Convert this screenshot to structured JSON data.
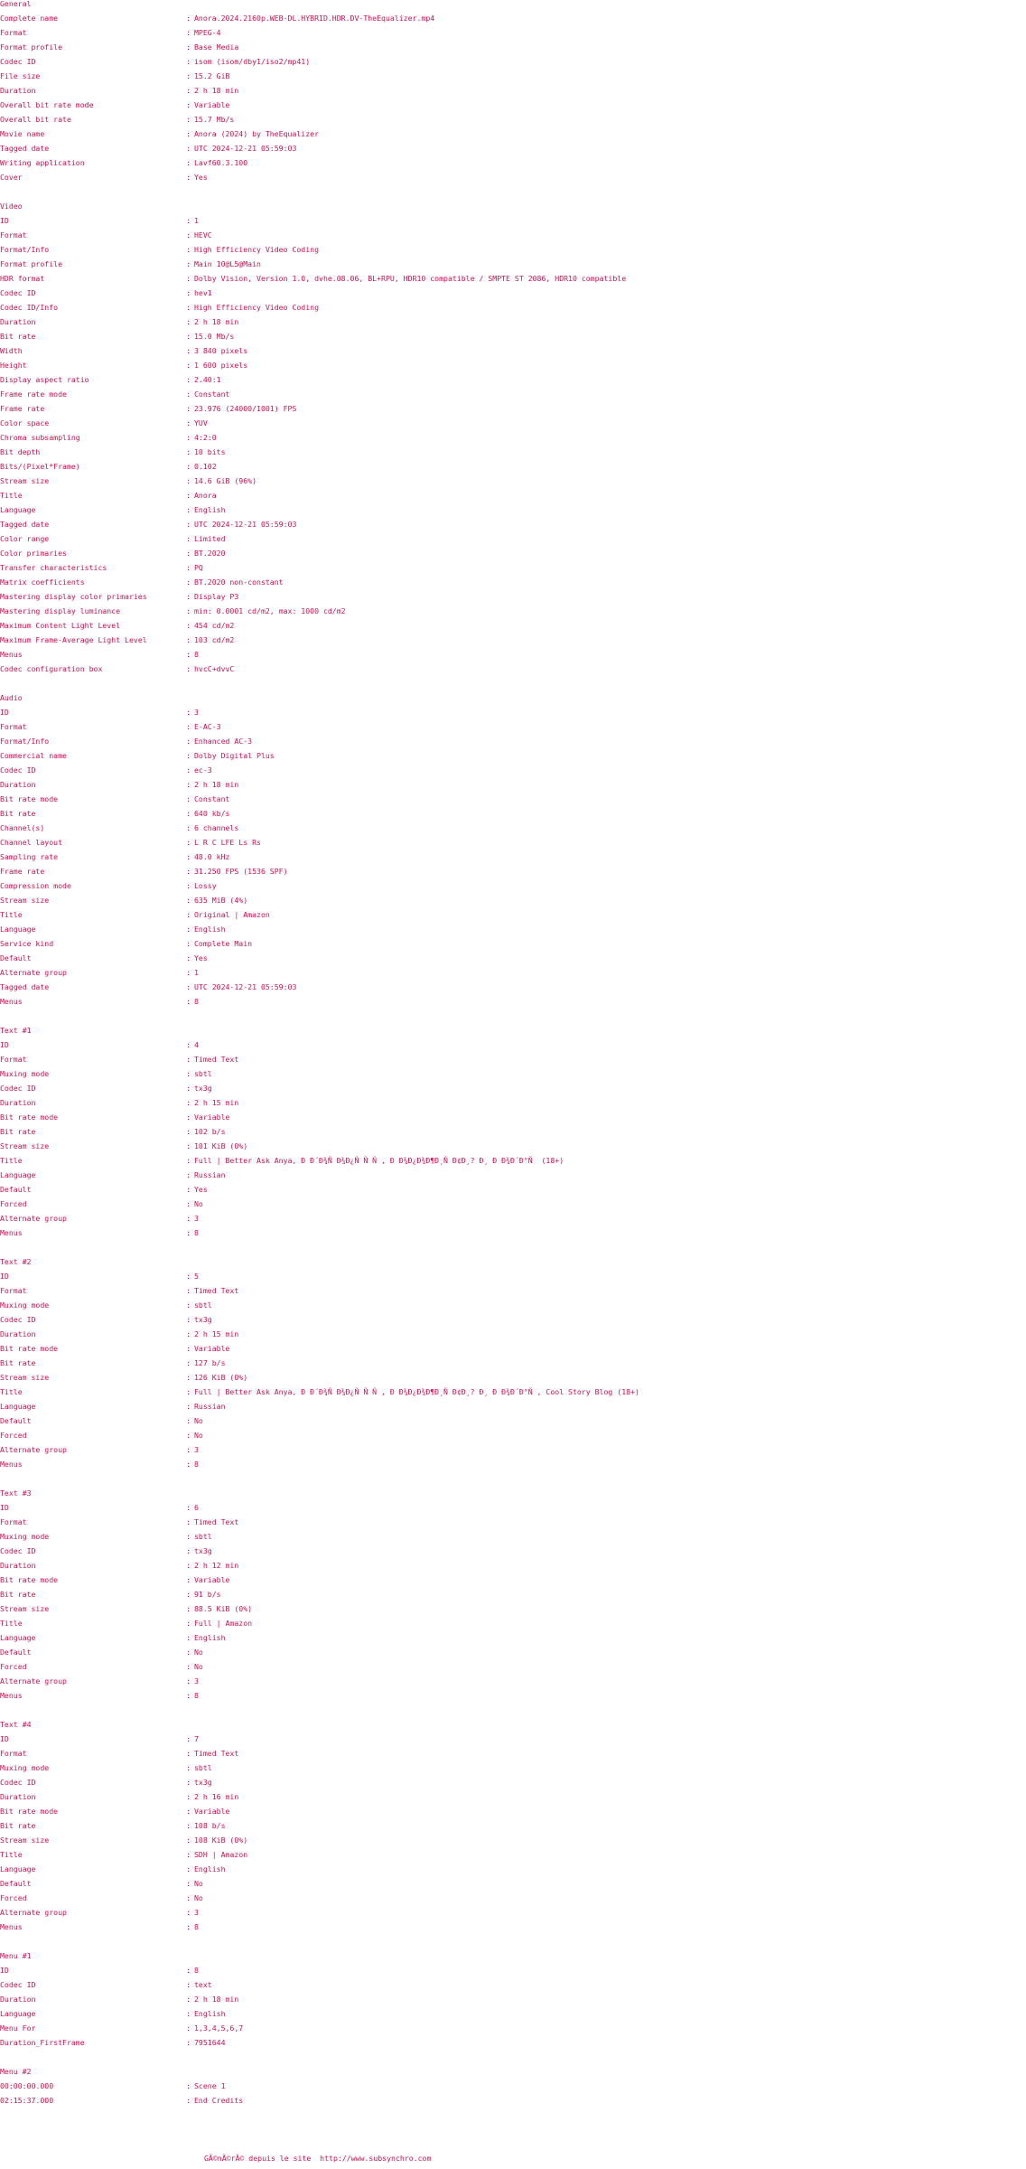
{
  "theme": {
    "text_color": "#cc1050",
    "background": "#ffffff"
  },
  "separator": ":",
  "sections": [
    {
      "title": "General",
      "rows": [
        [
          "Complete name",
          "Anora.2024.2160p.WEB-DL.HYBRID.HDR.DV-TheEqualizer.mp4"
        ],
        [
          "Format",
          "MPEG-4"
        ],
        [
          "Format profile",
          "Base Media"
        ],
        [
          "Codec ID",
          "isom (isom/dby1/iso2/mp41)"
        ],
        [
          "File size",
          "15.2 GiB"
        ],
        [
          "Duration",
          "2 h 18 min"
        ],
        [
          "Overall bit rate mode",
          "Variable"
        ],
        [
          "Overall bit rate",
          "15.7 Mb/s"
        ],
        [
          "Movie name",
          "Anora (2024) by TheEqualizer"
        ],
        [
          "Tagged date",
          "UTC 2024-12-21 05:59:03"
        ],
        [
          "Writing application",
          "Lavf60.3.100"
        ],
        [
          "Cover",
          "Yes"
        ]
      ]
    },
    {
      "title": "Video",
      "rows": [
        [
          "ID",
          "1"
        ],
        [
          "Format",
          "HEVC"
        ],
        [
          "Format/Info",
          "High Efficiency Video Coding"
        ],
        [
          "Format profile",
          "Main 10@L5@Main"
        ],
        [
          "HDR format",
          "Dolby Vision, Version 1.0, dvhe.08.06, BL+RPU, HDR10 compatible / SMPTE ST 2086, HDR10 compatible"
        ],
        [
          "Codec ID",
          "hev1"
        ],
        [
          "Codec ID/Info",
          "High Efficiency Video Coding"
        ],
        [
          "Duration",
          "2 h 18 min"
        ],
        [
          "Bit rate",
          "15.0 Mb/s"
        ],
        [
          "Width",
          "3 840 pixels"
        ],
        [
          "Height",
          "1 600 pixels"
        ],
        [
          "Display aspect ratio",
          "2.40:1"
        ],
        [
          "Frame rate mode",
          "Constant"
        ],
        [
          "Frame rate",
          "23.976 (24000/1001) FPS"
        ],
        [
          "Color space",
          "YUV"
        ],
        [
          "Chroma subsampling",
          "4:2:0"
        ],
        [
          "Bit depth",
          "10 bits"
        ],
        [
          "Bits/(Pixel*Frame)",
          "0.102"
        ],
        [
          "Stream size",
          "14.6 GiB (96%)"
        ],
        [
          "Title",
          "Anora"
        ],
        [
          "Language",
          "English"
        ],
        [
          "Tagged date",
          "UTC 2024-12-21 05:59:03"
        ],
        [
          "Color range",
          "Limited"
        ],
        [
          "Color primaries",
          "BT.2020"
        ],
        [
          "Transfer characteristics",
          "PQ"
        ],
        [
          "Matrix coefficients",
          "BT.2020 non-constant"
        ],
        [
          "Mastering display color primaries",
          "Display P3"
        ],
        [
          "Mastering display luminance",
          "min: 0.0001 cd/m2, max: 1000 cd/m2"
        ],
        [
          "Maximum Content Light Level",
          "454 cd/m2"
        ],
        [
          "Maximum Frame-Average Light Level",
          "103 cd/m2"
        ],
        [
          "Menus",
          "8"
        ],
        [
          "Codec configuration box",
          "hvcC+dvvC"
        ]
      ]
    },
    {
      "title": "Audio",
      "rows": [
        [
          "ID",
          "3"
        ],
        [
          "Format",
          "E-AC-3"
        ],
        [
          "Format/Info",
          "Enhanced AC-3"
        ],
        [
          "Commercial name",
          "Dolby Digital Plus"
        ],
        [
          "Codec ID",
          "ec-3"
        ],
        [
          "Duration",
          "2 h 18 min"
        ],
        [
          "Bit rate mode",
          "Constant"
        ],
        [
          "Bit rate",
          "640 kb/s"
        ],
        [
          "Channel(s)",
          "6 channels"
        ],
        [
          "Channel layout",
          "L R C LFE Ls Rs"
        ],
        [
          "Sampling rate",
          "48.0 kHz"
        ],
        [
          "Frame rate",
          "31.250 FPS (1536 SPF)"
        ],
        [
          "Compression mode",
          "Lossy"
        ],
        [
          "Stream size",
          "635 MiB (4%)"
        ],
        [
          "Title",
          "Original | Amazon"
        ],
        [
          "Language",
          "English"
        ],
        [
          "Service kind",
          "Complete Main"
        ],
        [
          "Default",
          "Yes"
        ],
        [
          "Alternate group",
          "1"
        ],
        [
          "Tagged date",
          "UTC 2024-12-21 05:59:03"
        ],
        [
          "Menus",
          "8"
        ]
      ]
    },
    {
      "title": "Text #1",
      "rows": [
        [
          "ID",
          "4"
        ],
        [
          "Format",
          "Timed Text"
        ],
        [
          "Muxing mode",
          "sbtl"
        ],
        [
          "Codec ID",
          "tx3g"
        ],
        [
          "Duration",
          "2 h 15 min"
        ],
        [
          "Bit rate mode",
          "Variable"
        ],
        [
          "Bit rate",
          "102 b/s"
        ],
        [
          "Stream size",
          "101 KiB (0%)"
        ],
        [
          "Title",
          "Full | Better Ask Anya, Ð Ð´Ð¾Ñ Ð¾Ð¿Ñ Ñ Ñ , Ð Ð¾Ð¿Ð¾Ð¶Ð¸Ñ Ð¢Ð¸? Ð¸ Ð Ð¾Ð´Ð°Ñ  (18+)"
        ],
        [
          "Language",
          "Russian"
        ],
        [
          "Default",
          "Yes"
        ],
        [
          "Forced",
          "No"
        ],
        [
          "Alternate group",
          "3"
        ],
        [
          "Menus",
          "8"
        ]
      ]
    },
    {
      "title": "Text #2",
      "rows": [
        [
          "ID",
          "5"
        ],
        [
          "Format",
          "Timed Text"
        ],
        [
          "Muxing mode",
          "sbtl"
        ],
        [
          "Codec ID",
          "tx3g"
        ],
        [
          "Duration",
          "2 h 15 min"
        ],
        [
          "Bit rate mode",
          "Variable"
        ],
        [
          "Bit rate",
          "127 b/s"
        ],
        [
          "Stream size",
          "126 KiB (0%)"
        ],
        [
          "Title",
          "Full | Better Ask Anya, Ð Ð´Ð¾Ñ Ð¾Ð¿Ñ Ñ Ñ , Ð Ð¾Ð¿Ð¾Ð¶Ð¸Ñ Ð¢Ð¸? Ð¸ Ð Ð¾Ð´Ð°Ñ , Cool Story Blog (18+)"
        ],
        [
          "Language",
          "Russian"
        ],
        [
          "Default",
          "No"
        ],
        [
          "Forced",
          "No"
        ],
        [
          "Alternate group",
          "3"
        ],
        [
          "Menus",
          "8"
        ]
      ]
    },
    {
      "title": "Text #3",
      "rows": [
        [
          "ID",
          "6"
        ],
        [
          "Format",
          "Timed Text"
        ],
        [
          "Muxing mode",
          "sbtl"
        ],
        [
          "Codec ID",
          "tx3g"
        ],
        [
          "Duration",
          "2 h 12 min"
        ],
        [
          "Bit rate mode",
          "Variable"
        ],
        [
          "Bit rate",
          "91 b/s"
        ],
        [
          "Stream size",
          "88.5 KiB (0%)"
        ],
        [
          "Title",
          "Full | Amazon"
        ],
        [
          "Language",
          "English"
        ],
        [
          "Default",
          "No"
        ],
        [
          "Forced",
          "No"
        ],
        [
          "Alternate group",
          "3"
        ],
        [
          "Menus",
          "8"
        ]
      ]
    },
    {
      "title": "Text #4",
      "rows": [
        [
          "ID",
          "7"
        ],
        [
          "Format",
          "Timed Text"
        ],
        [
          "Muxing mode",
          "sbtl"
        ],
        [
          "Codec ID",
          "tx3g"
        ],
        [
          "Duration",
          "2 h 16 min"
        ],
        [
          "Bit rate mode",
          "Variable"
        ],
        [
          "Bit rate",
          "108 b/s"
        ],
        [
          "Stream size",
          "108 KiB (0%)"
        ],
        [
          "Title",
          "SDH | Amazon"
        ],
        [
          "Language",
          "English"
        ],
        [
          "Default",
          "No"
        ],
        [
          "Forced",
          "No"
        ],
        [
          "Alternate group",
          "3"
        ],
        [
          "Menus",
          "8"
        ]
      ]
    },
    {
      "title": "Menu #1",
      "rows": [
        [
          "ID",
          "8"
        ],
        [
          "Codec ID",
          "text"
        ],
        [
          "Duration",
          "2 h 18 min"
        ],
        [
          "Language",
          "English"
        ],
        [
          "Menu For",
          "1,3,4,5,6,7"
        ],
        [
          "Duration_FirstFrame",
          "7951644"
        ]
      ]
    },
    {
      "title": "Menu #2",
      "rows": [
        [
          "00:00:00.000",
          "Scene 1"
        ],
        [
          "02:15:37.000",
          "End Credits"
        ]
      ]
    }
  ],
  "footer": {
    "prefix": "GÃ©nÃ©rÃ© depuis le site  ",
    "link": "http://www.subsynchro.com"
  }
}
